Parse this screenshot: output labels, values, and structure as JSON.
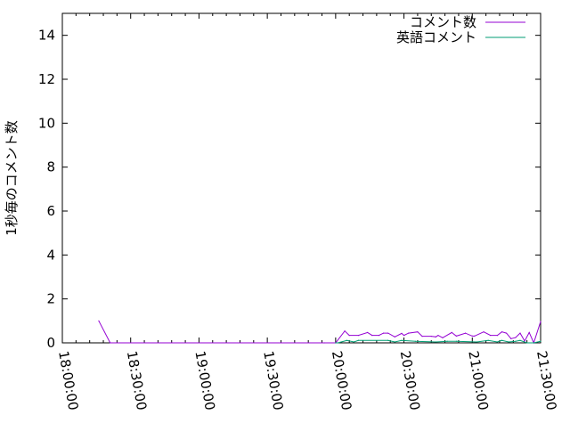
{
  "chart_data": {
    "type": "line",
    "title": "",
    "xlabel": "",
    "ylabel": "1秒毎のコメント数",
    "ylim": [
      0,
      15
    ],
    "yticks": [
      "0",
      "2",
      "4",
      "6",
      "8",
      "10",
      "12",
      "14"
    ],
    "xlim": [
      "18:00:00",
      "21:30:00"
    ],
    "xticks": [
      "18:00:00",
      "18:30:00",
      "19:00:00",
      "19:30:00",
      "20:00:00",
      "20:30:00",
      "21:00:00",
      "21:30:00"
    ],
    "grid": false,
    "legend_position": "top-right",
    "series": [
      {
        "name": "コメント数",
        "color": "#9400d3",
        "points": [
          [
            "18:16",
            1.0
          ],
          [
            "18:21",
            0
          ],
          [
            "19:55",
            0
          ],
          [
            "20:00",
            0
          ],
          [
            "20:04",
            0.54
          ],
          [
            "20:06",
            0.34
          ],
          [
            "20:10",
            0.34
          ],
          [
            "20:14",
            0.47
          ],
          [
            "20:16",
            0.34
          ],
          [
            "20:19",
            0.34
          ],
          [
            "20:21",
            0.44
          ],
          [
            "20:23",
            0.44
          ],
          [
            "20:26",
            0.27
          ],
          [
            "20:29",
            0.43
          ],
          [
            "20:30",
            0.34
          ],
          [
            "20:32",
            0.44
          ],
          [
            "20:36",
            0.5
          ],
          [
            "20:38",
            0.3
          ],
          [
            "20:42",
            0.3
          ],
          [
            "20:44",
            0.27
          ],
          [
            "20:45",
            0.34
          ],
          [
            "20:47",
            0.23
          ],
          [
            "20:51",
            0.47
          ],
          [
            "20:53",
            0.31
          ],
          [
            "20:57",
            0.44
          ],
          [
            "21:00",
            0.31
          ],
          [
            "21:01",
            0.31
          ],
          [
            "21:05",
            0.5
          ],
          [
            "21:08",
            0.34
          ],
          [
            "21:11",
            0.34
          ],
          [
            "21:13",
            0.5
          ],
          [
            "21:15",
            0.44
          ],
          [
            "21:17",
            0.19
          ],
          [
            "21:19",
            0.24
          ],
          [
            "21:21",
            0.44
          ],
          [
            "21:23",
            0.08
          ],
          [
            "21:25",
            0.47
          ],
          [
            "21:27",
            0
          ],
          [
            "21:30",
            0.97
          ]
        ]
      },
      {
        "name": "英語コメント",
        "color": "#009e73",
        "points": [
          [
            "20:00",
            0
          ],
          [
            "20:01",
            0
          ],
          [
            "20:05",
            0.11
          ],
          [
            "20:08",
            0.04
          ],
          [
            "20:10",
            0.11
          ],
          [
            "20:23",
            0.11
          ],
          [
            "20:26",
            0.04
          ],
          [
            "20:29",
            0.11
          ],
          [
            "20:35",
            0.07
          ],
          [
            "20:44",
            0.04
          ],
          [
            "20:49",
            0.07
          ],
          [
            "20:53",
            0.07
          ],
          [
            "21:02",
            0.04
          ],
          [
            "21:07",
            0.11
          ],
          [
            "21:11",
            0.04
          ],
          [
            "21:13",
            0.11
          ],
          [
            "21:16",
            0.04
          ],
          [
            "21:19",
            0.07
          ],
          [
            "21:21",
            0.11
          ],
          [
            "21:24",
            0
          ],
          [
            "21:27",
            0
          ],
          [
            "21:30",
            0.07
          ]
        ]
      }
    ]
  }
}
